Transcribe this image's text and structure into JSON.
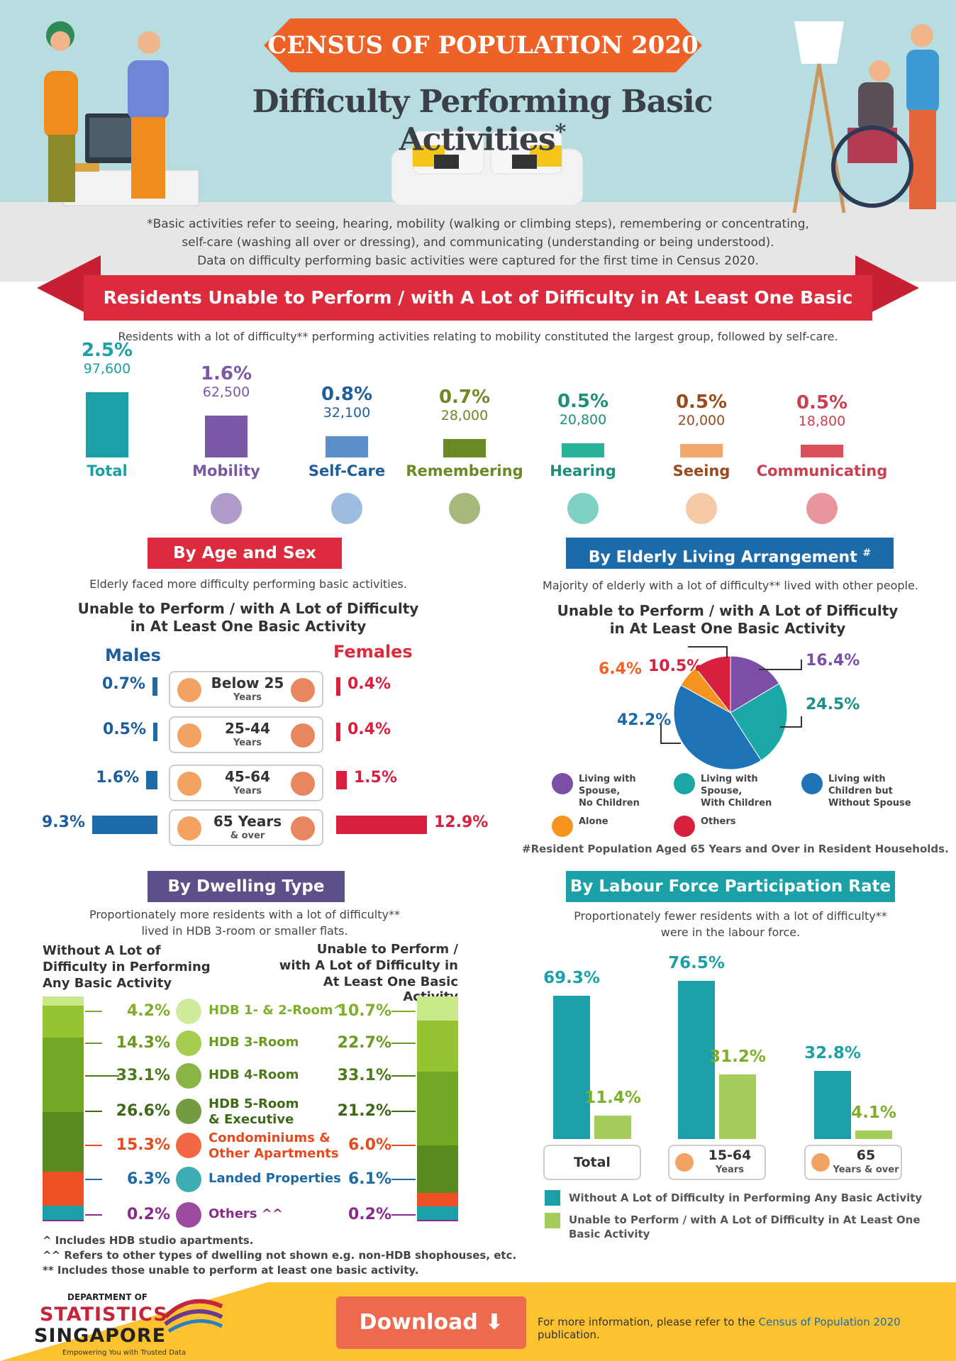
{
  "header": {
    "ribbon": "CENSUS OF POPULATION 2020",
    "title": "Difficulty Performing Basic Activities",
    "asterisk": "*",
    "note_line1": "*Basic activities refer to seeing, hearing, mobility (walking or climbing steps), remembering or concentrating,",
    "note_line2": "self-care (washing all over or dressing), and communicating (understanding or being understood).",
    "note_line3": "Data on difficulty performing basic activities were captured for the first time in Census 2020."
  },
  "band": {
    "title": "Residents Unable to Perform / with A Lot of Difficulty in At Least One Basic Activity",
    "subtitle": "Residents with a lot of difficulty** performing activities relating to mobility constituted the largest group, followed by self-care."
  },
  "colors": {
    "total": "#1aa0a6",
    "mobility": "#7b58a6",
    "selfcare": "#5a8fcb",
    "remembering": "#6b8a24",
    "hearing": "#28b39b",
    "seeing": "#f2a76c",
    "communicating": "#d94f5c"
  },
  "chart_data": [
    {
      "type": "bar",
      "categories": [
        "Total",
        "Mobility",
        "Self-Care",
        "Remembering",
        "Hearing",
        "Seeing",
        "Communicating"
      ],
      "values": [
        97600,
        62500,
        32100,
        28000,
        20800,
        20000,
        18800
      ],
      "percent_labels": [
        "2.5%",
        "1.6%",
        "0.8%",
        "0.7%",
        "0.5%",
        "0.5%",
        "0.5%"
      ],
      "value_labels": [
        "97,600",
        "62,500",
        "32,100",
        "28,000",
        "20,800",
        "20,000",
        "18,800"
      ]
    },
    {
      "type": "bar",
      "title": "Unable to Perform / with A Lot of Difficulty in At Least One Basic Activity",
      "categories": [
        "Below 25 Years",
        "25-44 Years",
        "45-64 Years",
        "65 Years & over"
      ],
      "series": [
        {
          "name": "Males",
          "values": [
            0.7,
            0.5,
            1.6,
            9.3
          ]
        },
        {
          "name": "Females",
          "values": [
            0.4,
            0.4,
            1.5,
            12.9
          ]
        }
      ]
    },
    {
      "type": "pie",
      "title": "Unable to Perform / with A Lot of Difficulty in At Least One Basic Activity",
      "slices": [
        {
          "name": "Living with Spouse, No Children",
          "value": 16.4,
          "color": "#7b4fa8"
        },
        {
          "name": "Living with Spouse, With Children",
          "value": 24.5,
          "color": "#1aa7a5"
        },
        {
          "name": "Living with Children but Without Spouse",
          "value": 42.2,
          "color": "#1f74b8"
        },
        {
          "name": "Alone",
          "value": 6.4,
          "color": "#f5941f"
        },
        {
          "name": "Others",
          "value": 10.5,
          "color": "#d81f3d"
        }
      ]
    },
    {
      "type": "bar",
      "stacked": true,
      "categories": [
        "Without A Lot of Difficulty in Performing Any Basic Activity",
        "Unable to Perform / with A Lot of Difficulty in At Least One Basic Activity"
      ],
      "series": [
        {
          "name": "HDB 1- & 2-Room^",
          "values": [
            4.2,
            10.7
          ]
        },
        {
          "name": "HDB 3-Room",
          "values": [
            14.3,
            22.7
          ]
        },
        {
          "name": "HDB 4-Room",
          "values": [
            33.1,
            33.1
          ]
        },
        {
          "name": "HDB 5-Room & Executive",
          "values": [
            26.6,
            21.2
          ]
        },
        {
          "name": "Condominiums & Other Apartments",
          "values": [
            15.3,
            6.0
          ]
        },
        {
          "name": "Landed Properties",
          "values": [
            6.3,
            6.1
          ]
        },
        {
          "name": "Others ^^",
          "values": [
            0.2,
            0.2
          ]
        }
      ]
    },
    {
      "type": "bar",
      "categories": [
        "Total",
        "15-64 Years",
        "65 Years & over"
      ],
      "series": [
        {
          "name": "Without A Lot of Difficulty in Performing Any Basic Activity",
          "values": [
            69.3,
            76.5,
            32.8
          ]
        },
        {
          "name": "Unable to Perform / with A Lot of Difficulty in At Least One Basic Activity",
          "values": [
            11.4,
            31.2,
            4.1
          ]
        }
      ]
    }
  ],
  "age": {
    "title": "By Age and Sex",
    "note": "Elderly faced more difficulty performing basic activities.",
    "sub1": "Unable to Perform / with A Lot of Difficulty",
    "sub2": "in At Least One Basic Activity",
    "males": "Males",
    "females": "Females",
    "rows": [
      {
        "main": "Below 25",
        "sub": "Years",
        "m": "0.7%",
        "f": "0.4%"
      },
      {
        "main": "25-44",
        "sub": "Years",
        "m": "0.5%",
        "f": "0.4%"
      },
      {
        "main": "45-64",
        "sub": "Years",
        "m": "1.6%",
        "f": "1.5%"
      },
      {
        "main": "65 Years",
        "sub": "& over",
        "m": "9.3%",
        "f": "12.9%"
      }
    ]
  },
  "living": {
    "title": "By Elderly Living Arrangement",
    "hash": "#",
    "note": "Majority of elderly with a lot of difficulty** lived with other people.",
    "sub1": "Unable to Perform / with A Lot of Difficulty",
    "sub2": "in At Least One Basic Activity",
    "labels": [
      "16.4%",
      "24.5%",
      "42.2%",
      "6.4%",
      "10.5%"
    ],
    "legend": [
      "Living with Spouse, No Children",
      "Living with Spouse, With Children",
      "Living with Children but Without Spouse",
      "Alone",
      "Others"
    ],
    "legend_lines": [
      [
        "Living with",
        "Spouse,",
        "No Children"
      ],
      [
        "Living with",
        "Spouse,",
        "With Children"
      ],
      [
        "Living with",
        "Children but",
        "Without Spouse"
      ],
      [
        "Alone"
      ],
      [
        "Others"
      ]
    ],
    "footnote": "#Resident Population Aged 65 Years and Over in Resident Households."
  },
  "dwelling": {
    "title": "By Dwelling Type",
    "note1": "Proportionately more residents with a lot of difficulty**",
    "note2": "lived in HDB 3-room or smaller flats.",
    "left_head": [
      "Without A Lot of",
      "Difficulty in Performing",
      "Any Basic Activity"
    ],
    "right_head": [
      "Unable to Perform /",
      "with A Lot of Difficulty in",
      "At Least One Basic Activity"
    ],
    "rows": [
      {
        "l": "4.2%",
        "r": "10.7%",
        "a": "HDB 1- & 2-Room^",
        "b": ""
      },
      {
        "l": "14.3%",
        "r": "22.7%",
        "a": "HDB 3-Room",
        "b": ""
      },
      {
        "l": "33.1%",
        "r": "33.1%",
        "a": "HDB 4-Room",
        "b": ""
      },
      {
        "l": "26.6%",
        "r": "21.2%",
        "a": "HDB 5-Room",
        "b": "& Executive"
      },
      {
        "l": "15.3%",
        "r": "6.0%",
        "a": "Condominiums &",
        "b": "Other Apartments"
      },
      {
        "l": "6.3%",
        "r": "6.1%",
        "a": "Landed Properties",
        "b": ""
      },
      {
        "l": "0.2%",
        "r": "0.2%",
        "a": "Others ^^",
        "b": ""
      }
    ],
    "colors": [
      "#c9e88a",
      "#95c431",
      "#74a824",
      "#5a8a1f",
      "#f04e23",
      "#1aa0a6",
      "#8b2a8e"
    ]
  },
  "labour": {
    "title": "By Labour Force Participation Rate",
    "note1": "Proportionately fewer residents with a lot of difficulty**",
    "note2": "were in the labour force.",
    "groups": [
      {
        "main": "Total",
        "sub": ""
      },
      {
        "main": "15-64",
        "sub": "Years"
      },
      {
        "main": "65",
        "sub": "Years & over"
      }
    ],
    "pcts_a": [
      "69.3%",
      "76.5%",
      "32.8%"
    ],
    "pcts_b": [
      "11.4%",
      "31.2%",
      "4.1%"
    ],
    "legend_a": "Without A Lot of Difficulty in Performing Any Basic Activity",
    "legend_b1": "Unable to Perform / with A Lot of Difficulty in At Least One",
    "legend_b2": "Basic Activity"
  },
  "footnotes": [
    "^   Includes HDB studio apartments.",
    "^^ Refers to other types of dwelling not shown e.g. non-HDB shophouses, etc.",
    "**   Includes those unable to perform at least one basic activity."
  ],
  "footer": {
    "dept": "DEPARTMENT OF",
    "stat": "STATISTICS",
    "sing": "SINGAPORE",
    "tag": "Empowering You with Trusted Data",
    "download": "Download",
    "more_pre": "For more information, please refer to the ",
    "more_link": "Census of Population 2020",
    "more_post": " publication."
  }
}
